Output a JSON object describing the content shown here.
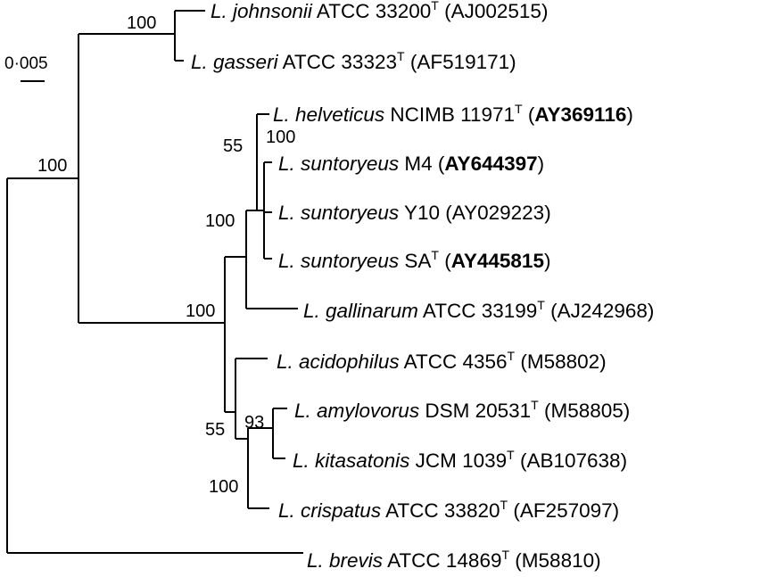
{
  "scale_bar": {
    "label": "0·005"
  },
  "taxa": [
    {
      "id": "johnsonii",
      "genus": "L.",
      "species": "johnsonii",
      "strain": "ATCC 33200",
      "type_strain": true,
      "accession": "AJ002515",
      "accession_bold": false
    },
    {
      "id": "gasseri",
      "genus": "L.",
      "species": "gasseri",
      "strain": "ATCC 33323",
      "type_strain": true,
      "accession": "AF519171",
      "accession_bold": false
    },
    {
      "id": "helveticus",
      "genus": "L.",
      "species": "helveticus",
      "strain": "NCIMB 11971",
      "type_strain": true,
      "accession": "AY369116",
      "accession_bold": true
    },
    {
      "id": "suntoryeus-m4",
      "genus": "L.",
      "species": "suntoryeus",
      "strain": "M4",
      "type_strain": false,
      "accession": "AY644397",
      "accession_bold": true
    },
    {
      "id": "suntoryeus-y10",
      "genus": "L.",
      "species": "suntoryeus",
      "strain": "Y10",
      "type_strain": false,
      "accession": "AY029223",
      "accession_bold": false
    },
    {
      "id": "suntoryeus-sa",
      "genus": "L.",
      "species": "suntoryeus",
      "strain": "SA",
      "type_strain": true,
      "accession": "AY445815",
      "accession_bold": true
    },
    {
      "id": "gallinarum",
      "genus": "L.",
      "species": "gallinarum",
      "strain": "ATCC 33199",
      "type_strain": true,
      "accession": "AJ242968",
      "accession_bold": false
    },
    {
      "id": "acidophilus",
      "genus": "L.",
      "species": "acidophilus",
      "strain": "ATCC 4356",
      "type_strain": true,
      "accession": "M58802",
      "accession_bold": false
    },
    {
      "id": "amylovorus",
      "genus": "L.",
      "species": "amylovorus",
      "strain": "DSM 20531",
      "type_strain": true,
      "accession": "M58805",
      "accession_bold": false
    },
    {
      "id": "kitasatonis",
      "genus": "L.",
      "species": "kitasatonis",
      "strain": "JCM 1039",
      "type_strain": true,
      "accession": "AB107638",
      "accession_bold": false
    },
    {
      "id": "crispatus",
      "genus": "L.",
      "species": "crispatus",
      "strain": "ATCC 33820",
      "type_strain": true,
      "accession": "AF257097",
      "accession_bold": false
    },
    {
      "id": "brevis",
      "genus": "L.",
      "species": "brevis",
      "strain": "ATCC 14869",
      "type_strain": true,
      "accession": "M58810",
      "accession_bold": false
    }
  ],
  "bootstrap": {
    "johnsonii_gasseri": "100",
    "ingroup": "100",
    "acidophilus_group": "100",
    "helveticus_suntoryeus": "55",
    "suntoryeus_cluster": "100",
    "helveticus_gallinarum": "100",
    "acidophilus_crispatus": "55",
    "amylovorus_kitasatonis": "93",
    "amylovorus_crispatus": "100"
  }
}
